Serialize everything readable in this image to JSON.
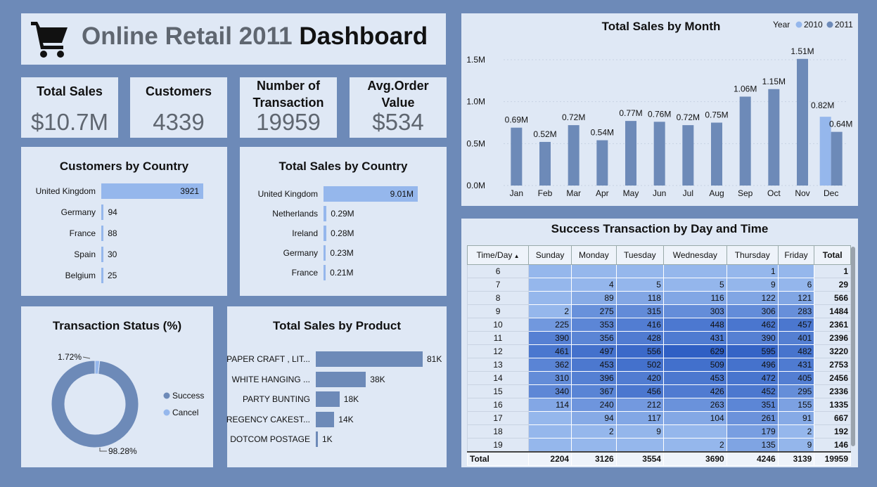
{
  "header": {
    "title_part1": "Online Retail 2011",
    "title_part2": "Dashboard",
    "icon": "shopping-cart-icon"
  },
  "kpis": [
    {
      "label": "Total Sales",
      "value": "$10.7M"
    },
    {
      "label": "Customers",
      "value": "4339"
    },
    {
      "label": "Number of Transaction",
      "value": "19959"
    },
    {
      "label": "Avg.Order Value",
      "value": "$534"
    }
  ],
  "colors": {
    "background": "#6d8ab8",
    "panel": "#dfe8f5",
    "bar_dark": "#6d8ab8",
    "bar_light": "#95b7ec"
  },
  "chart_data": [
    {
      "type": "bar",
      "orientation": "horizontal",
      "title": "Customers by Country",
      "categories": [
        "United Kingdom",
        "Germany",
        "France",
        "Spain",
        "Belgium"
      ],
      "values": [
        3921,
        94,
        88,
        30,
        25
      ],
      "labels": [
        "3921",
        "94",
        "88",
        "30",
        "25"
      ]
    },
    {
      "type": "bar",
      "orientation": "horizontal",
      "title": "Total Sales by Country",
      "categories": [
        "United Kingdom",
        "Netherlands",
        "Ireland",
        "Germany",
        "France"
      ],
      "values": [
        9.01,
        0.29,
        0.28,
        0.23,
        0.21
      ],
      "labels": [
        "9.01M",
        "0.29M",
        "0.28M",
        "0.23M",
        "0.21M"
      ]
    },
    {
      "type": "bar",
      "title": "Total Sales by Month",
      "categories": [
        "Jan",
        "Feb",
        "Mar",
        "Apr",
        "May",
        "Jun",
        "Jul",
        "Aug",
        "Sep",
        "Oct",
        "Nov",
        "Dec"
      ],
      "legend_title": "Year",
      "series": [
        {
          "name": "2010",
          "color": "#95b7ec",
          "values": [
            null,
            null,
            null,
            null,
            null,
            null,
            null,
            null,
            null,
            null,
            null,
            0.82
          ]
        },
        {
          "name": "2011",
          "color": "#6d8ab8",
          "values": [
            0.69,
            0.52,
            0.72,
            0.54,
            0.77,
            0.76,
            0.72,
            0.75,
            1.06,
            1.15,
            1.51,
            0.64
          ]
        }
      ],
      "value_labels": {
        "2010": [
          null,
          null,
          null,
          null,
          null,
          null,
          null,
          null,
          null,
          null,
          null,
          "0.82M"
        ],
        "2011": [
          "0.69M",
          "0.52M",
          "0.72M",
          "0.54M",
          "0.77M",
          "0.76M",
          "0.72M",
          "0.75M",
          "1.06M",
          "1.15M",
          "1.51M",
          "0.64M"
        ]
      },
      "yticks": [
        "0.0M",
        "0.5M",
        "1.0M",
        "1.5M"
      ],
      "ylim": [
        0,
        1.6
      ],
      "legend_position": "top-right"
    },
    {
      "type": "pie",
      "title": "Transaction Status (%)",
      "categories": [
        "Success",
        "Cancel"
      ],
      "values": [
        98.28,
        1.72
      ],
      "labels": [
        "98.28%",
        "1.72%"
      ],
      "colors": [
        "#6d8ab8",
        "#95b7ec"
      ]
    },
    {
      "type": "bar",
      "orientation": "horizontal",
      "title": "Total Sales by Product",
      "categories": [
        "PAPER CRAFT , LIT...",
        "WHITE HANGING ...",
        "PARTY BUNTING",
        "REGENCY CAKEST...",
        "DOTCOM POSTAGE"
      ],
      "values": [
        81,
        38,
        18,
        14,
        1
      ],
      "labels": [
        "81K",
        "38K",
        "18K",
        "14K",
        "1K"
      ]
    },
    {
      "type": "table",
      "title": "Success Transaction by Day and Time",
      "columns": [
        "Time/Day",
        "Sunday",
        "Monday",
        "Tuesday",
        "Wednesday",
        "Thursday",
        "Friday",
        "Total"
      ],
      "rows": [
        [
          "6",
          "",
          "",
          "",
          "",
          "1",
          "",
          "1"
        ],
        [
          "7",
          "",
          "4",
          "5",
          "5",
          "9",
          "6",
          "29"
        ],
        [
          "8",
          "",
          "89",
          "118",
          "116",
          "122",
          "121",
          "566"
        ],
        [
          "9",
          "2",
          "275",
          "315",
          "303",
          "306",
          "283",
          "1484"
        ],
        [
          "10",
          "225",
          "353",
          "416",
          "448",
          "462",
          "457",
          "2361"
        ],
        [
          "11",
          "390",
          "356",
          "428",
          "431",
          "390",
          "401",
          "2396"
        ],
        [
          "12",
          "461",
          "497",
          "556",
          "629",
          "595",
          "482",
          "3220"
        ],
        [
          "13",
          "362",
          "453",
          "502",
          "509",
          "496",
          "431",
          "2753"
        ],
        [
          "14",
          "310",
          "396",
          "420",
          "453",
          "472",
          "405",
          "2456"
        ],
        [
          "15",
          "340",
          "367",
          "456",
          "426",
          "452",
          "295",
          "2336"
        ],
        [
          "16",
          "114",
          "240",
          "212",
          "263",
          "351",
          "155",
          "1335"
        ],
        [
          "17",
          "",
          "94",
          "117",
          "104",
          "261",
          "91",
          "667"
        ],
        [
          "18",
          "",
          "2",
          "9",
          "",
          "179",
          "2",
          "192"
        ],
        [
          "19",
          "",
          "",
          "",
          "2",
          "135",
          "9",
          "146"
        ]
      ],
      "total_row": [
        "Total",
        "2204",
        "3126",
        "3554",
        "3690",
        "4246",
        "3139",
        "19959"
      ]
    }
  ]
}
